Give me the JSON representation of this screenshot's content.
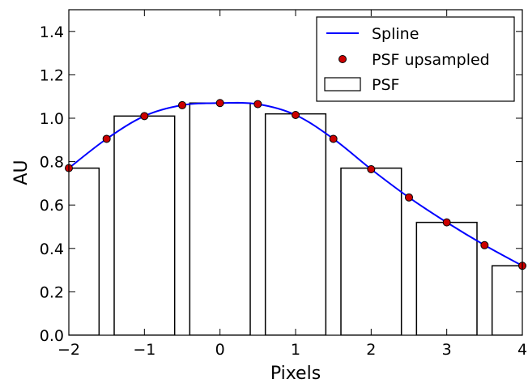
{
  "chart_data": {
    "type": "bar",
    "xlabel": "Pixels",
    "ylabel": "AU",
    "xlim": [
      -2,
      4
    ],
    "ylim": [
      0,
      1.5
    ],
    "xticks": [
      "−2",
      "−1",
      "0",
      "1",
      "2",
      "3",
      "4"
    ],
    "yticks": [
      "0.0",
      "0.2",
      "0.4",
      "0.6",
      "0.8",
      "1.0",
      "1.2",
      "1.4"
    ],
    "grid": false,
    "legend_position": "top-right",
    "colors": {
      "spline": "#0000ff",
      "marker": "#cc0000",
      "bar_edge": "#000000"
    },
    "series": [
      {
        "name": "PSF",
        "kind": "bar",
        "bar_width": 0.8,
        "x": [
          -2,
          -1,
          0,
          1,
          2,
          3,
          4
        ],
        "values": [
          0.77,
          1.01,
          1.07,
          1.02,
          0.77,
          0.52,
          0.32
        ]
      },
      {
        "name": "PSF upsampled",
        "kind": "scatter",
        "x": [
          -2,
          -1.5,
          -1,
          -0.5,
          0,
          0.5,
          1,
          1.5,
          2,
          2.5,
          3,
          3.5,
          4
        ],
        "values": [
          0.77,
          0.905,
          1.01,
          1.06,
          1.07,
          1.065,
          1.015,
          0.905,
          0.765,
          0.635,
          0.52,
          0.415,
          0.32
        ]
      },
      {
        "name": "Spline",
        "kind": "line",
        "x": [
          -2,
          -1.5,
          -1,
          -0.5,
          0,
          0.5,
          1,
          1.5,
          2,
          2.5,
          3,
          3.5,
          4
        ],
        "values": [
          0.77,
          0.905,
          1.01,
          1.06,
          1.07,
          1.065,
          1.015,
          0.905,
          0.765,
          0.635,
          0.52,
          0.415,
          0.32
        ]
      }
    ],
    "legend": [
      "Spline",
      "PSF upsampled",
      "PSF"
    ]
  }
}
